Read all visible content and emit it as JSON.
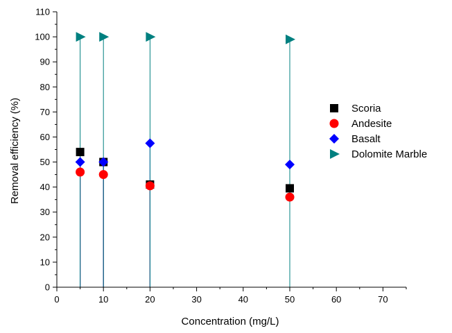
{
  "chart_data": {
    "type": "scatter",
    "xlabel": "Concentration (mg/L)",
    "ylabel": "Removal efficiency (%)",
    "xlim": [
      0,
      75
    ],
    "ylim": [
      0,
      110
    ],
    "x_ticks": [
      0,
      10,
      20,
      30,
      40,
      50,
      60,
      70
    ],
    "y_ticks": [
      0,
      10,
      20,
      30,
      40,
      50,
      60,
      70,
      80,
      90,
      100,
      110
    ],
    "grid": false,
    "legend_position": "right",
    "drop_lines": true,
    "series": [
      {
        "name": "Scoria",
        "marker": "square",
        "color": "#000000",
        "x": [
          5,
          10,
          20,
          50
        ],
        "y": [
          54,
          50,
          41,
          39.5
        ]
      },
      {
        "name": "Andesite",
        "marker": "circle",
        "color": "#ff0000",
        "x": [
          5,
          10,
          20,
          50
        ],
        "y": [
          46,
          45,
          40.5,
          36
        ]
      },
      {
        "name": "Basalt",
        "marker": "diamond",
        "color": "#0000ff",
        "x": [
          5,
          10,
          20,
          50
        ],
        "y": [
          50,
          50,
          57.5,
          49
        ]
      },
      {
        "name": "Dolomite Marble",
        "marker": "triangle-right",
        "color": "#008080",
        "x": [
          5,
          10,
          20,
          50
        ],
        "y": [
          100,
          100,
          100,
          99
        ]
      }
    ]
  }
}
